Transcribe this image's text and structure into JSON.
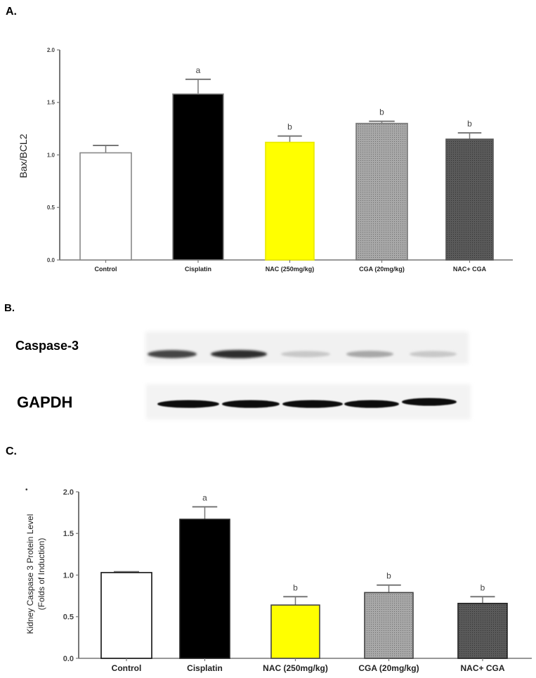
{
  "panels": {
    "a": {
      "label": "A."
    },
    "b": {
      "label": "B."
    },
    "c": {
      "label": "C."
    }
  },
  "colors": {
    "control": "#ffffff",
    "cisplatin": "#000000",
    "nac": "#ffff00",
    "cga": "#9a9a9a",
    "nac_cga": "#555555",
    "axis": "#777777",
    "errorbar": "#777777"
  },
  "western_blot": {
    "rows": [
      {
        "label": "Caspase-3",
        "band_intensities": [
          0.85,
          0.95,
          0.25,
          0.4,
          0.25
        ]
      },
      {
        "label": "GAPDH",
        "band_intensities": [
          1,
          1,
          1,
          1,
          1
        ]
      }
    ],
    "lanes": [
      "Control",
      "Cisplatin",
      "NAC (250mg/kg)",
      "CGA (20mg/kg)",
      "NAC+ CGA"
    ]
  },
  "chart_data": [
    {
      "id": "A",
      "type": "bar",
      "title": "",
      "xlabel": "",
      "ylabel": "Bax/BCL2",
      "categories": [
        "Control",
        "Cisplatin",
        "NAC (250mg/kg)",
        "CGA (20mg/kg)",
        "NAC+ CGA"
      ],
      "values": [
        1.02,
        1.58,
        1.12,
        1.3,
        1.15
      ],
      "errors": [
        0.07,
        0.14,
        0.06,
        0.02,
        0.06
      ],
      "annotations": [
        "",
        "a",
        "b",
        "b",
        "b"
      ],
      "ylim": [
        0,
        2.0
      ],
      "yticks": [
        "0.0",
        "0.5",
        "1.0",
        "1.5",
        "2.0"
      ],
      "grid": false,
      "legend": null
    },
    {
      "id": "C",
      "type": "bar",
      "title": "",
      "xlabel": "",
      "ylabel": "Kidney Caspase 3 Protein Level",
      "ylabel2": "(Folds of Induction)",
      "categories": [
        "Control",
        "Cisplatin",
        "NAC (250mg/kg)",
        "CGA (20mg/kg)",
        "NAC+ CGA"
      ],
      "values": [
        1.03,
        1.67,
        0.64,
        0.79,
        0.66
      ],
      "errors": [
        0.01,
        0.15,
        0.1,
        0.09,
        0.08
      ],
      "annotations": [
        "",
        "a",
        "b",
        "b",
        "b"
      ],
      "ylim": [
        0,
        2.0
      ],
      "yticks": [
        "0.0",
        "0.5",
        "1.0",
        "1.5",
        "2.0"
      ],
      "grid": false,
      "legend": null
    }
  ]
}
